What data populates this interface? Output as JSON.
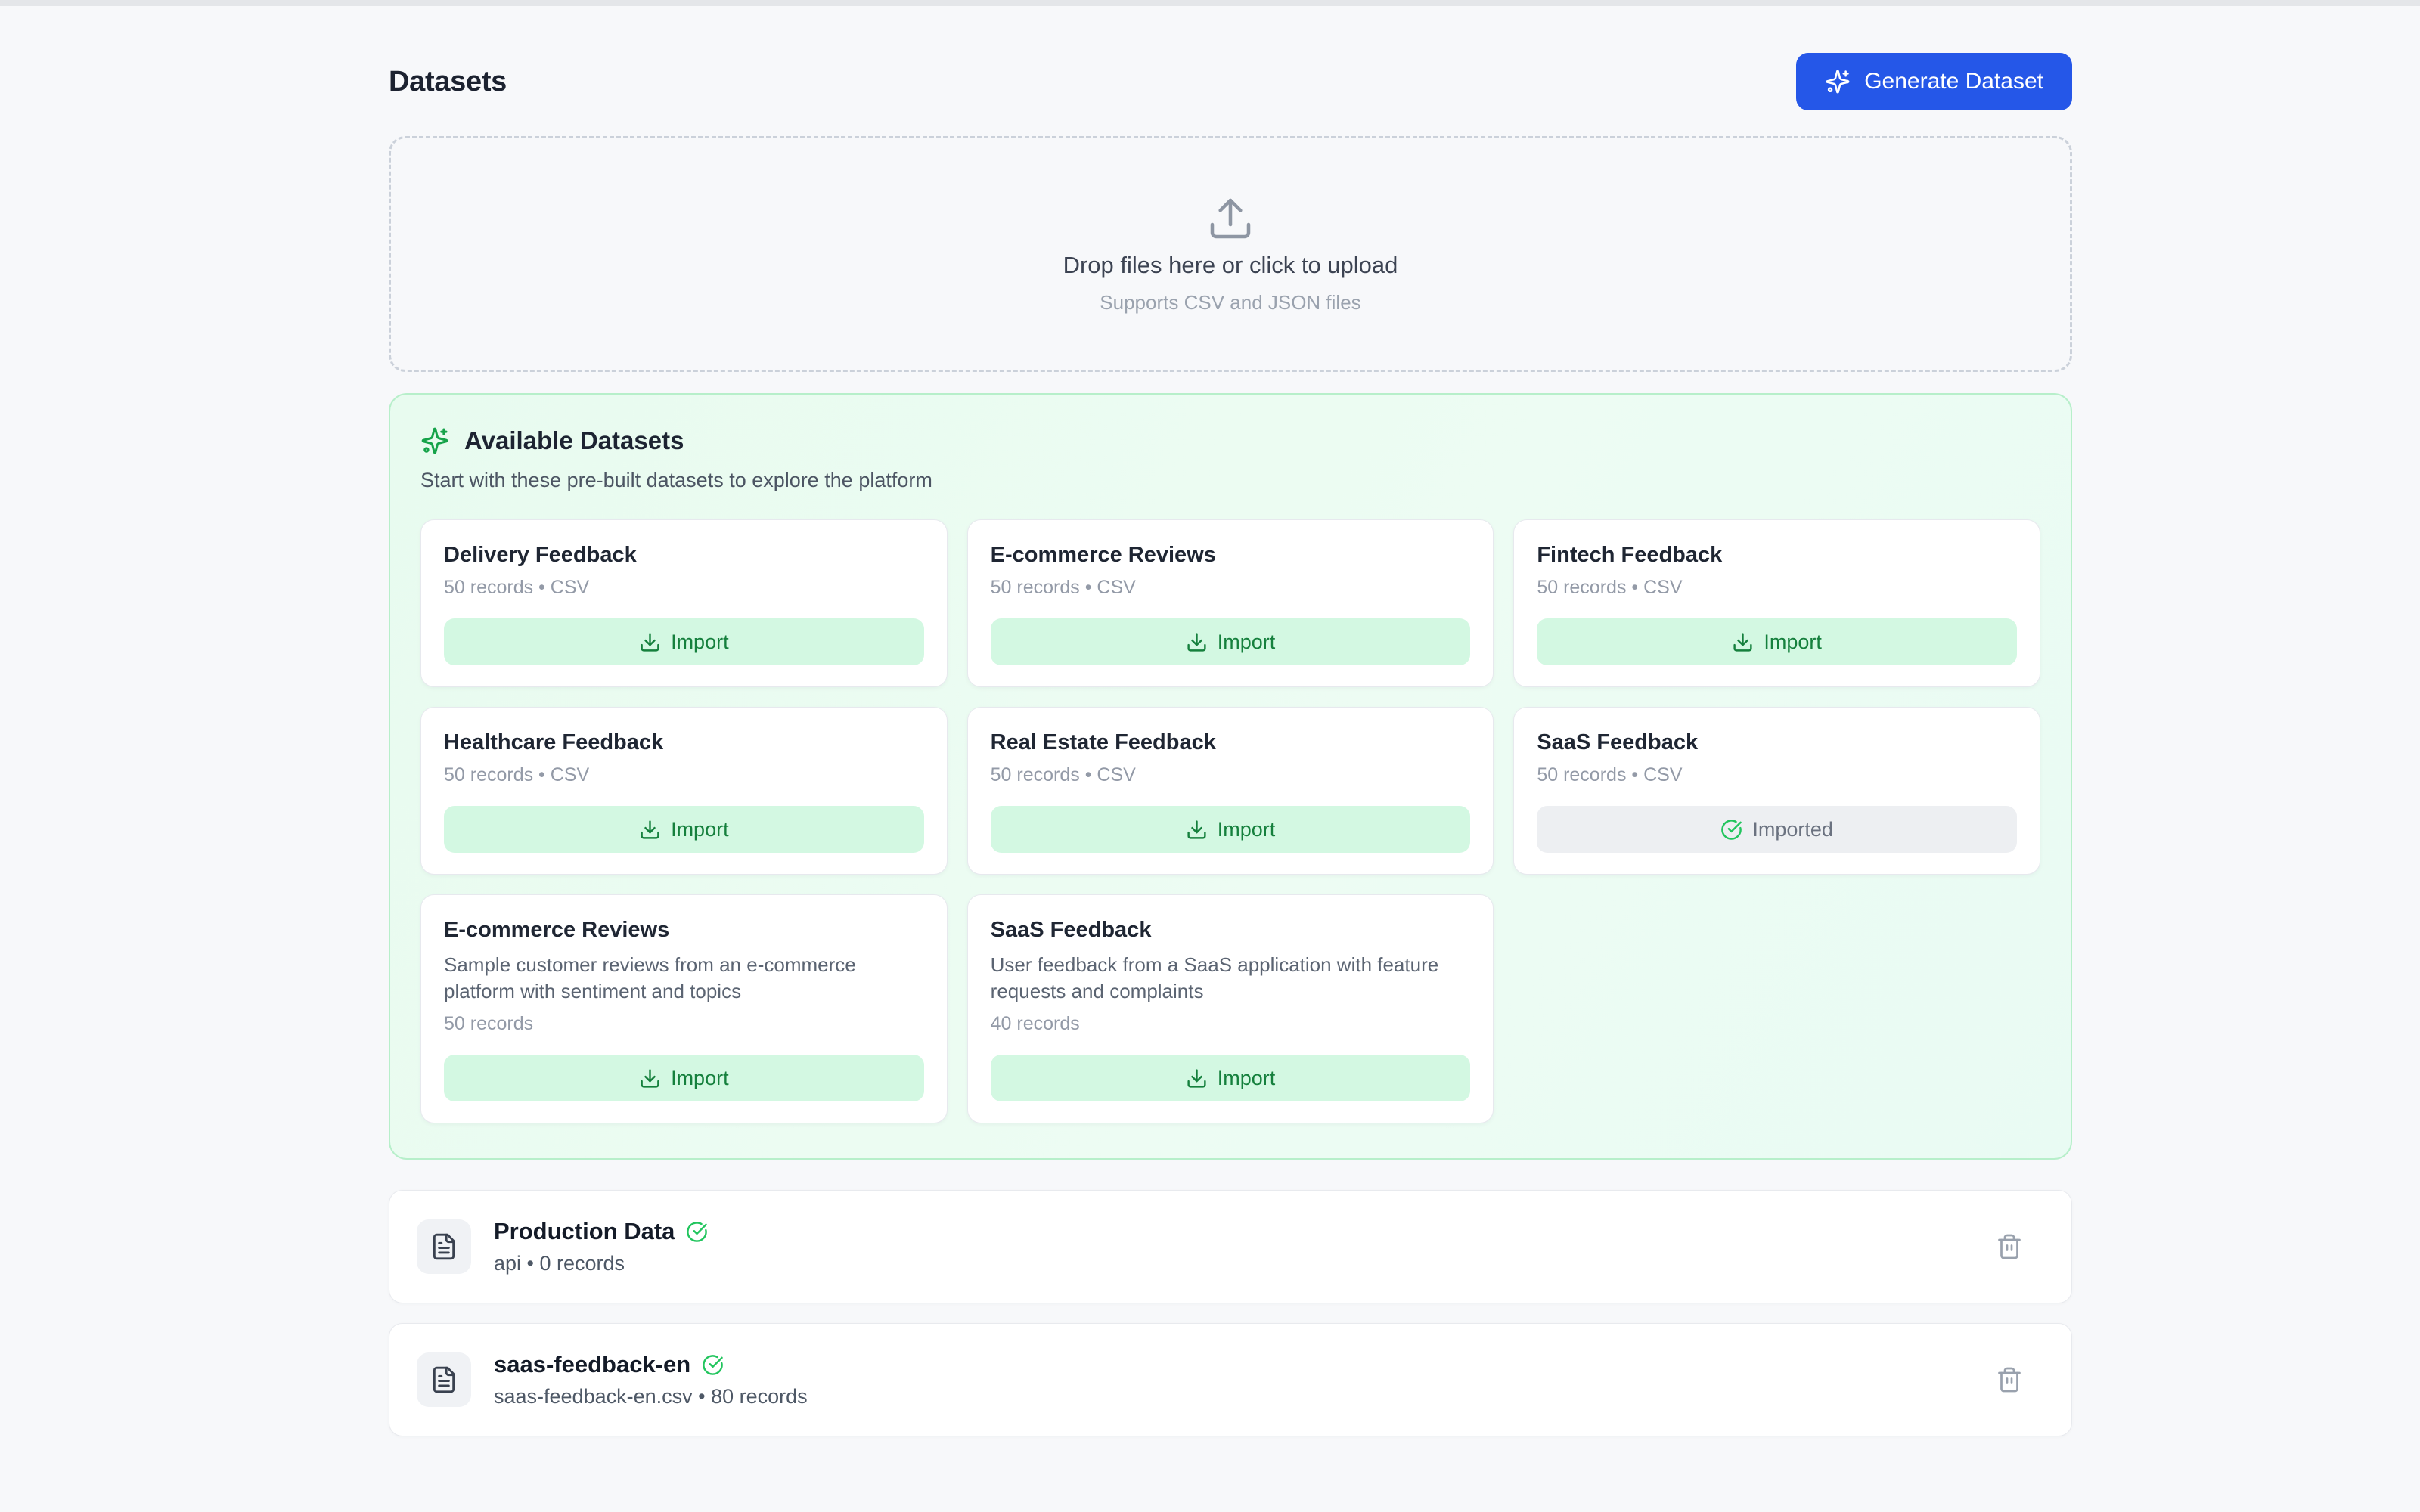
{
  "page": {
    "title": "Datasets",
    "generate_button_label": "Generate Dataset"
  },
  "upload": {
    "title": "Drop files here or click to upload",
    "subtitle": "Supports CSV and JSON files"
  },
  "available": {
    "title": "Available Datasets",
    "subtitle": "Start with these pre-built datasets to explore the platform",
    "import_label": "Import",
    "imported_label": "Imported",
    "cards": [
      {
        "title": "Delivery Feedback",
        "meta": "50 records • CSV",
        "state": "import"
      },
      {
        "title": "E-commerce Reviews",
        "meta": "50 records • CSV",
        "state": "import"
      },
      {
        "title": "Fintech Feedback",
        "meta": "50 records • CSV",
        "state": "import"
      },
      {
        "title": "Healthcare Feedback",
        "meta": "50 records • CSV",
        "state": "import"
      },
      {
        "title": "Real Estate Feedback",
        "meta": "50 records • CSV",
        "state": "import"
      },
      {
        "title": "SaaS Feedback",
        "meta": "50 records • CSV",
        "state": "imported"
      },
      {
        "title": "E-commerce Reviews",
        "description": "Sample customer reviews from an e-commerce platform with sentiment and topics",
        "meta": "50 records",
        "state": "import"
      },
      {
        "title": "SaaS Feedback",
        "description": "User feedback from a SaaS application with feature requests and complaints",
        "meta": "40 records",
        "state": "import"
      }
    ]
  },
  "datasets": [
    {
      "name": "Production Data",
      "meta": "api • 0 records"
    },
    {
      "name": "saas-feedback-en",
      "meta": "saas-feedback-en.csv • 80 records"
    }
  ],
  "colors": {
    "accent_blue": "#2557e8",
    "panel_green_border": "#b7efca",
    "panel_green_bg": "#e9fbf1",
    "import_bg": "#d3f8e2",
    "import_text": "#15803d",
    "success_green": "#22c55e",
    "sparkles_green": "#16a34a",
    "page_bg": "#f7f8fa"
  }
}
